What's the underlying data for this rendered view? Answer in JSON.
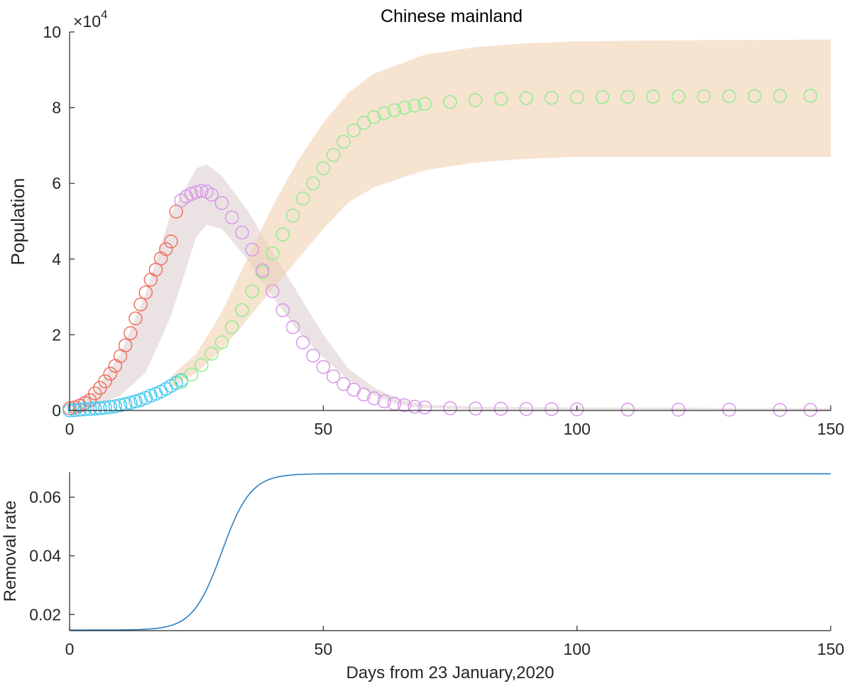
{
  "chart_data": [
    {
      "type": "scatter",
      "title": "Chinese mainland",
      "xlabel": "",
      "ylabel": "Population",
      "xlim": [
        0,
        150
      ],
      "ylim": [
        0,
        100000
      ],
      "x_ticks": [
        0,
        50,
        100,
        150
      ],
      "y_ticks": [
        0,
        2,
        4,
        6,
        8,
        10
      ],
      "y_exponent_label": "×10",
      "y_exponent_power": "4",
      "grid": false,
      "colors": {
        "red": "#ee7060",
        "cyan": "#40c8f0",
        "green": "#90ee90",
        "purple": "#d898e8",
        "band_gray": "#ddd0d0",
        "band_orange": "#f0d0b0"
      },
      "series": [
        {
          "color_key": "red",
          "x": [
            0,
            1,
            2,
            3,
            4,
            5,
            6,
            7,
            8,
            9,
            10,
            11,
            12,
            13,
            14,
            15,
            16,
            17,
            18,
            19,
            20,
            21
          ],
          "y": [
            571,
            830,
            1287,
            1975,
            2744,
            4515,
            5974,
            7711,
            9692,
            11791,
            14380,
            17205,
            20438,
            24324,
            28018,
            31161,
            34546,
            37198,
            40171,
            42638,
            44653,
            52526
          ]
        },
        {
          "color_key": "cyan",
          "x": [
            0,
            1,
            2,
            3,
            4,
            5,
            6,
            7,
            8,
            9,
            10,
            11,
            12,
            13,
            14,
            15,
            16,
            17,
            18,
            19,
            20,
            21,
            22
          ],
          "y": [
            20,
            80,
            200,
            300,
            400,
            500,
            600,
            750,
            900,
            1100,
            1400,
            1700,
            2000,
            2400,
            2800,
            3300,
            3900,
            4400,
            5000,
            5700,
            6500,
            7300,
            8000
          ]
        },
        {
          "color_key": "green",
          "x": [
            22,
            24,
            26,
            28,
            30,
            32,
            34,
            36,
            38,
            40,
            42,
            44,
            46,
            48,
            50,
            52,
            54,
            56,
            58,
            60,
            62,
            64,
            66,
            68,
            70,
            75,
            80,
            85,
            90,
            95,
            100,
            105,
            110,
            115,
            120,
            125,
            130,
            135,
            140,
            146
          ],
          "y": [
            7500,
            9500,
            12000,
            15000,
            18000,
            22000,
            26500,
            31500,
            36500,
            41500,
            46500,
            51500,
            56000,
            60000,
            64000,
            67500,
            71000,
            74000,
            76000,
            77500,
            78500,
            79300,
            80000,
            80500,
            81000,
            81500,
            82000,
            82300,
            82500,
            82600,
            82700,
            82800,
            82850,
            82900,
            82950,
            83000,
            83000,
            83050,
            83100,
            83150
          ]
        },
        {
          "color_key": "purple",
          "x": [
            22,
            23,
            24,
            25,
            26,
            27,
            28,
            30,
            32,
            34,
            36,
            38,
            40,
            42,
            44,
            46,
            48,
            50,
            52,
            54,
            56,
            58,
            60,
            62,
            64,
            66,
            68,
            70,
            75,
            80,
            85,
            90,
            95,
            100,
            110,
            120,
            130,
            140,
            146
          ],
          "y": [
            55500,
            56500,
            57200,
            57700,
            58000,
            57800,
            57000,
            54800,
            51000,
            47000,
            42500,
            37000,
            31500,
            26500,
            22000,
            18000,
            14500,
            11500,
            9000,
            7000,
            5500,
            4200,
            3200,
            2400,
            1800,
            1400,
            1000,
            800,
            600,
            500,
            450,
            400,
            350,
            300,
            250,
            200,
            200,
            150,
            150
          ]
        }
      ],
      "bands": [
        {
          "color_key": "band_gray",
          "x": [
            0,
            5,
            10,
            15,
            20,
            25,
            27,
            30,
            35,
            40,
            45,
            50,
            55,
            60,
            65,
            70,
            80,
            100,
            150
          ],
          "upper": [
            1500,
            5000,
            15000,
            31000,
            52000,
            64000,
            65000,
            62000,
            53000,
            42000,
            31000,
            20000,
            11000,
            6000,
            3000,
            1500,
            1000,
            800,
            600
          ],
          "lower": [
            0,
            1000,
            4000,
            10000,
            25000,
            46000,
            49000,
            48000,
            40000,
            30000,
            21000,
            14000,
            8000,
            4000,
            1500,
            600,
            300,
            200,
            100
          ]
        },
        {
          "color_key": "band_orange",
          "x": [
            20,
            25,
            30,
            35,
            40,
            45,
            50,
            55,
            60,
            70,
            80,
            90,
            100,
            120,
            150
          ],
          "upper": [
            9000,
            15000,
            26000,
            40000,
            54000,
            66000,
            76000,
            84000,
            89000,
            94000,
            96000,
            97000,
            97500,
            97800,
            98000
          ],
          "lower": [
            6000,
            10000,
            16000,
            24000,
            32000,
            40000,
            48000,
            55000,
            59000,
            63500,
            65500,
            66500,
            67000,
            67000,
            67000
          ]
        }
      ]
    },
    {
      "type": "line",
      "xlabel": "Days from 23 January,2020",
      "ylabel": "Removal rate",
      "xlim": [
        0,
        150
      ],
      "ylim": [
        0.0145,
        0.0685
      ],
      "x_ticks": [
        0,
        50,
        100,
        150
      ],
      "y_ticks": [
        "0.02",
        "0.04",
        "0.06"
      ],
      "grid": false,
      "line_color": "#2f7fc0",
      "logistic": {
        "base": 0.0147,
        "amplitude": 0.0533,
        "k": 0.35,
        "x0": 30,
        "x_step": 0.5
      }
    }
  ]
}
